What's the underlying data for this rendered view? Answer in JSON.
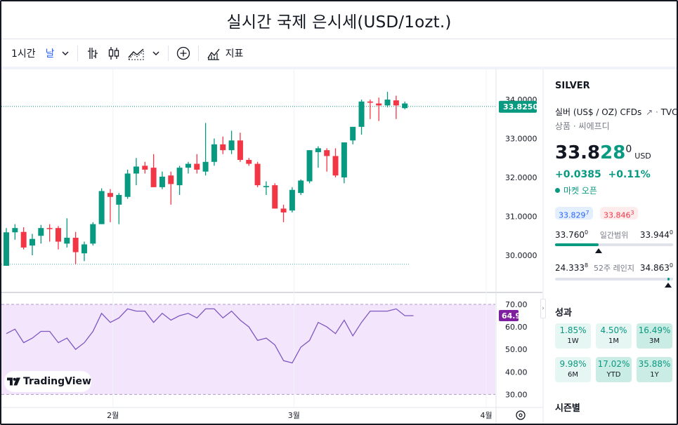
{
  "page": {
    "title": "실시간 국제 은시세(USD/1ozt.)"
  },
  "toolbar": {
    "interval": "1시간",
    "range": "날",
    "indicators_label": "지표",
    "icons": [
      "chevron-down-icon",
      "bar-type-icon",
      "candles-icon",
      "area-type-icon",
      "add-circle-icon",
      "indicators-icon"
    ]
  },
  "chart_data": {
    "type": "candlestick",
    "symbol": "SILVER",
    "interval": "day",
    "x_ticks": [
      {
        "label": "2월",
        "index": 12.3
      },
      {
        "label": "3월",
        "index": 33.2
      },
      {
        "label": "4월",
        "index": 55.4
      }
    ],
    "price_axis": {
      "min": 29.55,
      "max": 34.2,
      "ticks": [
        "34.0000",
        "33.0000",
        "32.0000",
        "31.0000",
        "30.0000"
      ]
    },
    "last_price_label": "33.8250",
    "last_price": 33.825,
    "low_line": 29.77,
    "candles": [
      {
        "o": 29.73,
        "h": 30.7,
        "l": 29.73,
        "c": 30.59
      },
      {
        "o": 30.59,
        "h": 30.8,
        "l": 30.4,
        "c": 30.7
      },
      {
        "o": 30.6,
        "h": 30.72,
        "l": 30.15,
        "c": 30.2
      },
      {
        "o": 30.25,
        "h": 30.55,
        "l": 30.0,
        "c": 30.42
      },
      {
        "o": 30.5,
        "h": 30.78,
        "l": 30.3,
        "c": 30.7
      },
      {
        "o": 30.7,
        "h": 30.8,
        "l": 30.35,
        "c": 30.68
      },
      {
        "o": 30.7,
        "h": 30.75,
        "l": 30.15,
        "c": 30.35
      },
      {
        "o": 30.3,
        "h": 30.95,
        "l": 30.2,
        "c": 30.45
      },
      {
        "o": 30.45,
        "h": 30.6,
        "l": 29.77,
        "c": 30.08
      },
      {
        "o": 30.05,
        "h": 30.35,
        "l": 29.85,
        "c": 30.28
      },
      {
        "o": 30.3,
        "h": 30.85,
        "l": 30.25,
        "c": 30.8
      },
      {
        "o": 30.8,
        "h": 31.72,
        "l": 30.8,
        "c": 31.65
      },
      {
        "o": 31.6,
        "h": 31.7,
        "l": 30.85,
        "c": 31.5
      },
      {
        "o": 31.3,
        "h": 31.6,
        "l": 30.8,
        "c": 31.55
      },
      {
        "o": 31.5,
        "h": 32.2,
        "l": 31.45,
        "c": 32.1
      },
      {
        "o": 32.1,
        "h": 32.5,
        "l": 31.8,
        "c": 32.28
      },
      {
        "o": 32.3,
        "h": 32.4,
        "l": 32.1,
        "c": 32.2
      },
      {
        "o": 32.25,
        "h": 32.6,
        "l": 31.75,
        "c": 31.75
      },
      {
        "o": 31.75,
        "h": 32.15,
        "l": 31.7,
        "c": 32.02
      },
      {
        "o": 32.05,
        "h": 32.15,
        "l": 31.3,
        "c": 31.83
      },
      {
        "o": 31.8,
        "h": 32.3,
        "l": 31.55,
        "c": 32.25
      },
      {
        "o": 32.25,
        "h": 32.4,
        "l": 32.1,
        "c": 32.35
      },
      {
        "o": 32.35,
        "h": 32.6,
        "l": 32.1,
        "c": 32.2
      },
      {
        "o": 32.15,
        "h": 33.4,
        "l": 32.05,
        "c": 32.4
      },
      {
        "o": 32.4,
        "h": 33.0,
        "l": 32.3,
        "c": 32.85
      },
      {
        "o": 32.85,
        "h": 33.05,
        "l": 32.6,
        "c": 32.7
      },
      {
        "o": 32.7,
        "h": 33.2,
        "l": 32.6,
        "c": 32.95
      },
      {
        "o": 32.95,
        "h": 33.15,
        "l": 32.4,
        "c": 32.45
      },
      {
        "o": 32.45,
        "h": 32.5,
        "l": 32.3,
        "c": 32.35
      },
      {
        "o": 32.35,
        "h": 32.4,
        "l": 31.75,
        "c": 31.8
      },
      {
        "o": 31.75,
        "h": 31.9,
        "l": 31.55,
        "c": 31.78
      },
      {
        "o": 31.8,
        "h": 31.85,
        "l": 31.2,
        "c": 31.2
      },
      {
        "o": 31.2,
        "h": 31.3,
        "l": 30.85,
        "c": 31.1
      },
      {
        "o": 31.15,
        "h": 31.75,
        "l": 31.1,
        "c": 31.68
      },
      {
        "o": 31.6,
        "h": 31.95,
        "l": 31.55,
        "c": 31.92
      },
      {
        "o": 31.9,
        "h": 32.7,
        "l": 31.85,
        "c": 32.7
      },
      {
        "o": 32.65,
        "h": 32.8,
        "l": 32.25,
        "c": 32.75
      },
      {
        "o": 32.7,
        "h": 32.75,
        "l": 32.15,
        "c": 32.55
      },
      {
        "o": 32.55,
        "h": 32.75,
        "l": 32.0,
        "c": 32.05
      },
      {
        "o": 32.0,
        "h": 32.9,
        "l": 31.85,
        "c": 32.9
      },
      {
        "o": 32.95,
        "h": 33.3,
        "l": 32.85,
        "c": 33.3
      },
      {
        "o": 33.3,
        "h": 34.0,
        "l": 33.1,
        "c": 33.95
      },
      {
        "o": 33.95,
        "h": 34.0,
        "l": 33.5,
        "c": 33.92
      },
      {
        "o": 33.9,
        "h": 34.05,
        "l": 33.45,
        "c": 33.85
      },
      {
        "o": 33.85,
        "h": 34.2,
        "l": 33.8,
        "c": 34.0
      },
      {
        "o": 33.98,
        "h": 34.1,
        "l": 33.5,
        "c": 33.85
      },
      {
        "o": 33.78,
        "h": 33.95,
        "l": 33.75,
        "c": 33.9
      }
    ],
    "rsi": {
      "axis_ticks": [
        "70.00",
        "60.00",
        "50.00",
        "40.00",
        "30.00"
      ],
      "min": 26,
      "max": 74,
      "overbought": 70,
      "oversold": 30,
      "last_label": "64.93",
      "values": [
        57,
        59,
        53,
        55,
        58,
        58,
        53,
        55,
        50,
        53,
        58,
        66,
        62,
        64,
        68,
        67,
        67,
        62,
        66,
        63,
        65,
        66,
        64,
        68,
        68,
        64,
        67,
        63,
        60,
        54,
        55,
        52,
        45,
        44,
        51,
        54,
        62,
        60,
        57,
        63,
        56,
        62,
        67,
        67,
        67,
        68,
        65,
        65
      ]
    }
  },
  "branding": {
    "logo_text": "TradingView"
  },
  "side_panel": {
    "symbol": "SILVER",
    "description": "실버 (US$ / OZ) CFDs",
    "exchange": "TVC",
    "type_line": "상품 · 씨에프디",
    "price_main": "33.8",
    "price_tail": "28",
    "price_sup": "0",
    "currency": "USD",
    "change": "+0.0385  +0.11%",
    "market_status": "마켓 오픈",
    "bid_main": "33.829",
    "bid_sup": "7",
    "ask_main": "33.846",
    "ask_sup": "3",
    "day_range": {
      "label": "일간범위",
      "low_main": "33.760",
      "low_sup": "0",
      "high_main": "33.944",
      "high_sup": "0",
      "position": 0.37
    },
    "week52_range": {
      "label": "52주 레인지",
      "low_main": "24.333",
      "low_sup": "8",
      "high_main": "34.863",
      "high_sup": "0",
      "position": 0.96
    },
    "performance_title": "성과",
    "performance": [
      {
        "value": "1.85%",
        "label": "1W",
        "strength": 0
      },
      {
        "value": "4.50%",
        "label": "1M",
        "strength": 0
      },
      {
        "value": "16.49%",
        "label": "3M",
        "strength": 1
      },
      {
        "value": "9.98%",
        "label": "6M",
        "strength": 0
      },
      {
        "value": "17.02%",
        "label": "YTD",
        "strength": 1
      },
      {
        "value": "35.88%",
        "label": "1Y",
        "strength": 1
      }
    ],
    "seasonal_title": "시즌별"
  },
  "colors": {
    "up": "#089981",
    "down": "#f23645",
    "rsi_line": "#7e57c2",
    "rsi_fill": "#f3e5fb",
    "last_price_badge": "#089981",
    "rsi_badge": "#7e1fa0"
  }
}
